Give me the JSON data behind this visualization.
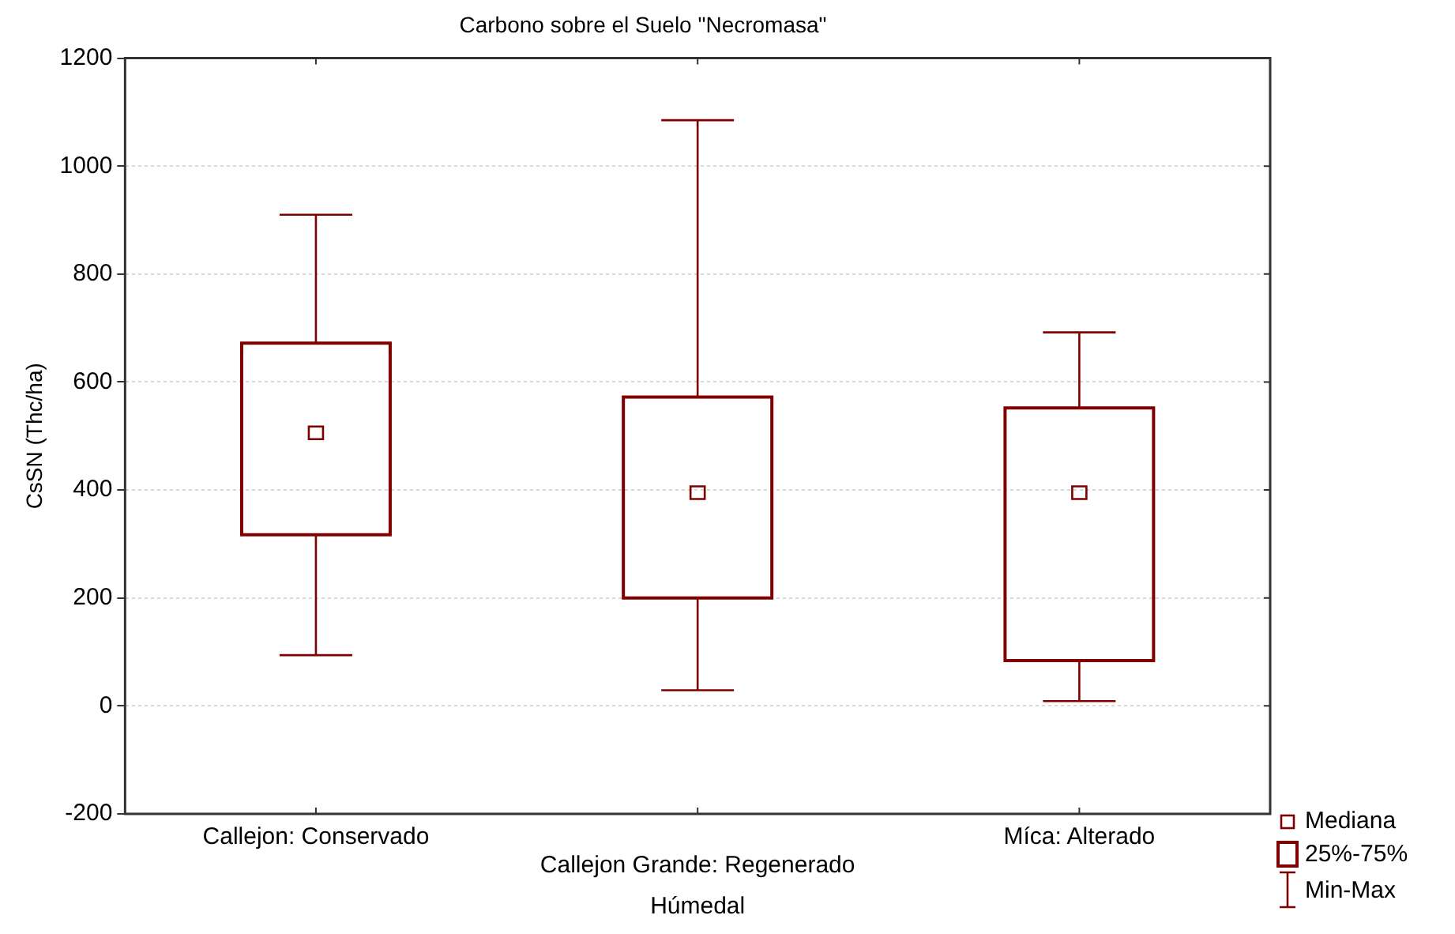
{
  "chart_data": {
    "type": "box",
    "title": "Carbono sobre el Suelo \"Necromasa\"",
    "xlabel": "Húmedal",
    "ylabel": "CsSN (Thc/ha)",
    "categories": [
      "Callejon: Conservado",
      "Callejon Grande: Regenerado",
      "Míca: Alterado"
    ],
    "series": [
      {
        "color": "#800000",
        "boxes": [
          {
            "low": 94,
            "q1": 317,
            "median": 506,
            "q3": 672,
            "high": 910
          },
          {
            "low": 29,
            "q1": 200,
            "median": 395,
            "q3": 572,
            "high": 1085
          },
          {
            "low": 9,
            "q1": 84,
            "median": 395,
            "q3": 552,
            "high": 692
          }
        ]
      }
    ],
    "ylim": [
      -200,
      1200
    ],
    "yticks": [
      -200,
      0,
      200,
      400,
      600,
      800,
      1000,
      1200
    ],
    "grid": "y",
    "annotations": [
      "Mediana",
      "25%-75%",
      "Min-Max"
    ]
  }
}
